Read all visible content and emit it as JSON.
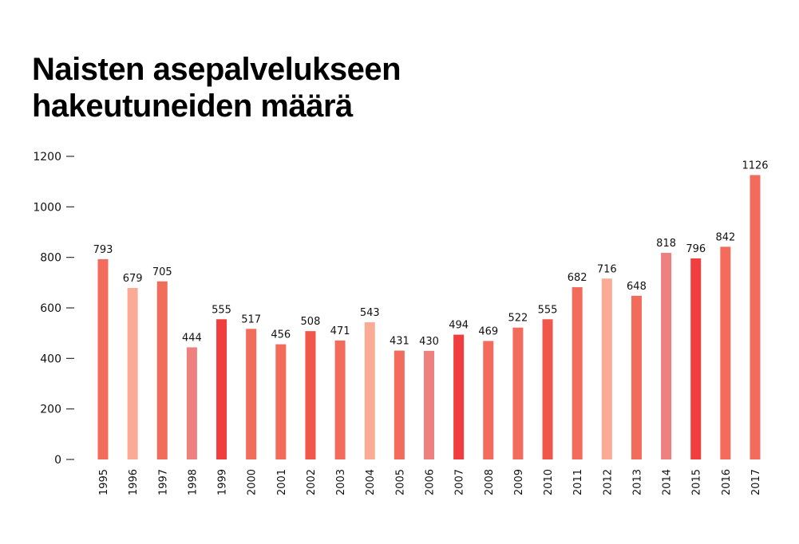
{
  "chart_data": {
    "type": "bar",
    "title_lines": [
      "Naisten asepalvelukseen",
      "hakeutuneiden määrä"
    ],
    "xlabel": "",
    "ylabel": "",
    "ylim": [
      0,
      1200
    ],
    "yticks": [
      0,
      200,
      400,
      600,
      800,
      1000,
      1200
    ],
    "grid": false,
    "categories": [
      "1995",
      "1996",
      "1997",
      "1998",
      "1999",
      "2000",
      "2001",
      "2002",
      "2003",
      "2004",
      "2005",
      "2006",
      "2007",
      "2008",
      "2009",
      "2010",
      "2011",
      "2012",
      "2013",
      "2014",
      "2015",
      "2016",
      "2017"
    ],
    "values": [
      793,
      679,
      705,
      444,
      555,
      517,
      456,
      508,
      471,
      543,
      431,
      430,
      494,
      469,
      522,
      555,
      682,
      716,
      648,
      818,
      796,
      842,
      1126
    ],
    "colors": [
      "#F26B5B",
      "#FBAA96",
      "#F26B5B",
      "#EE8080",
      "#F03E3E",
      "#F26B5B",
      "#F26B5B",
      "#F0564A",
      "#F26B5B",
      "#FBAA96",
      "#F26B5B",
      "#EE8080",
      "#F03E3E",
      "#F26B5B",
      "#F26B5B",
      "#F0564A",
      "#F26B5B",
      "#FBAA96",
      "#F26B5B",
      "#EE8080",
      "#F03E3E",
      "#F26B5B",
      "#F26B5B"
    ]
  }
}
